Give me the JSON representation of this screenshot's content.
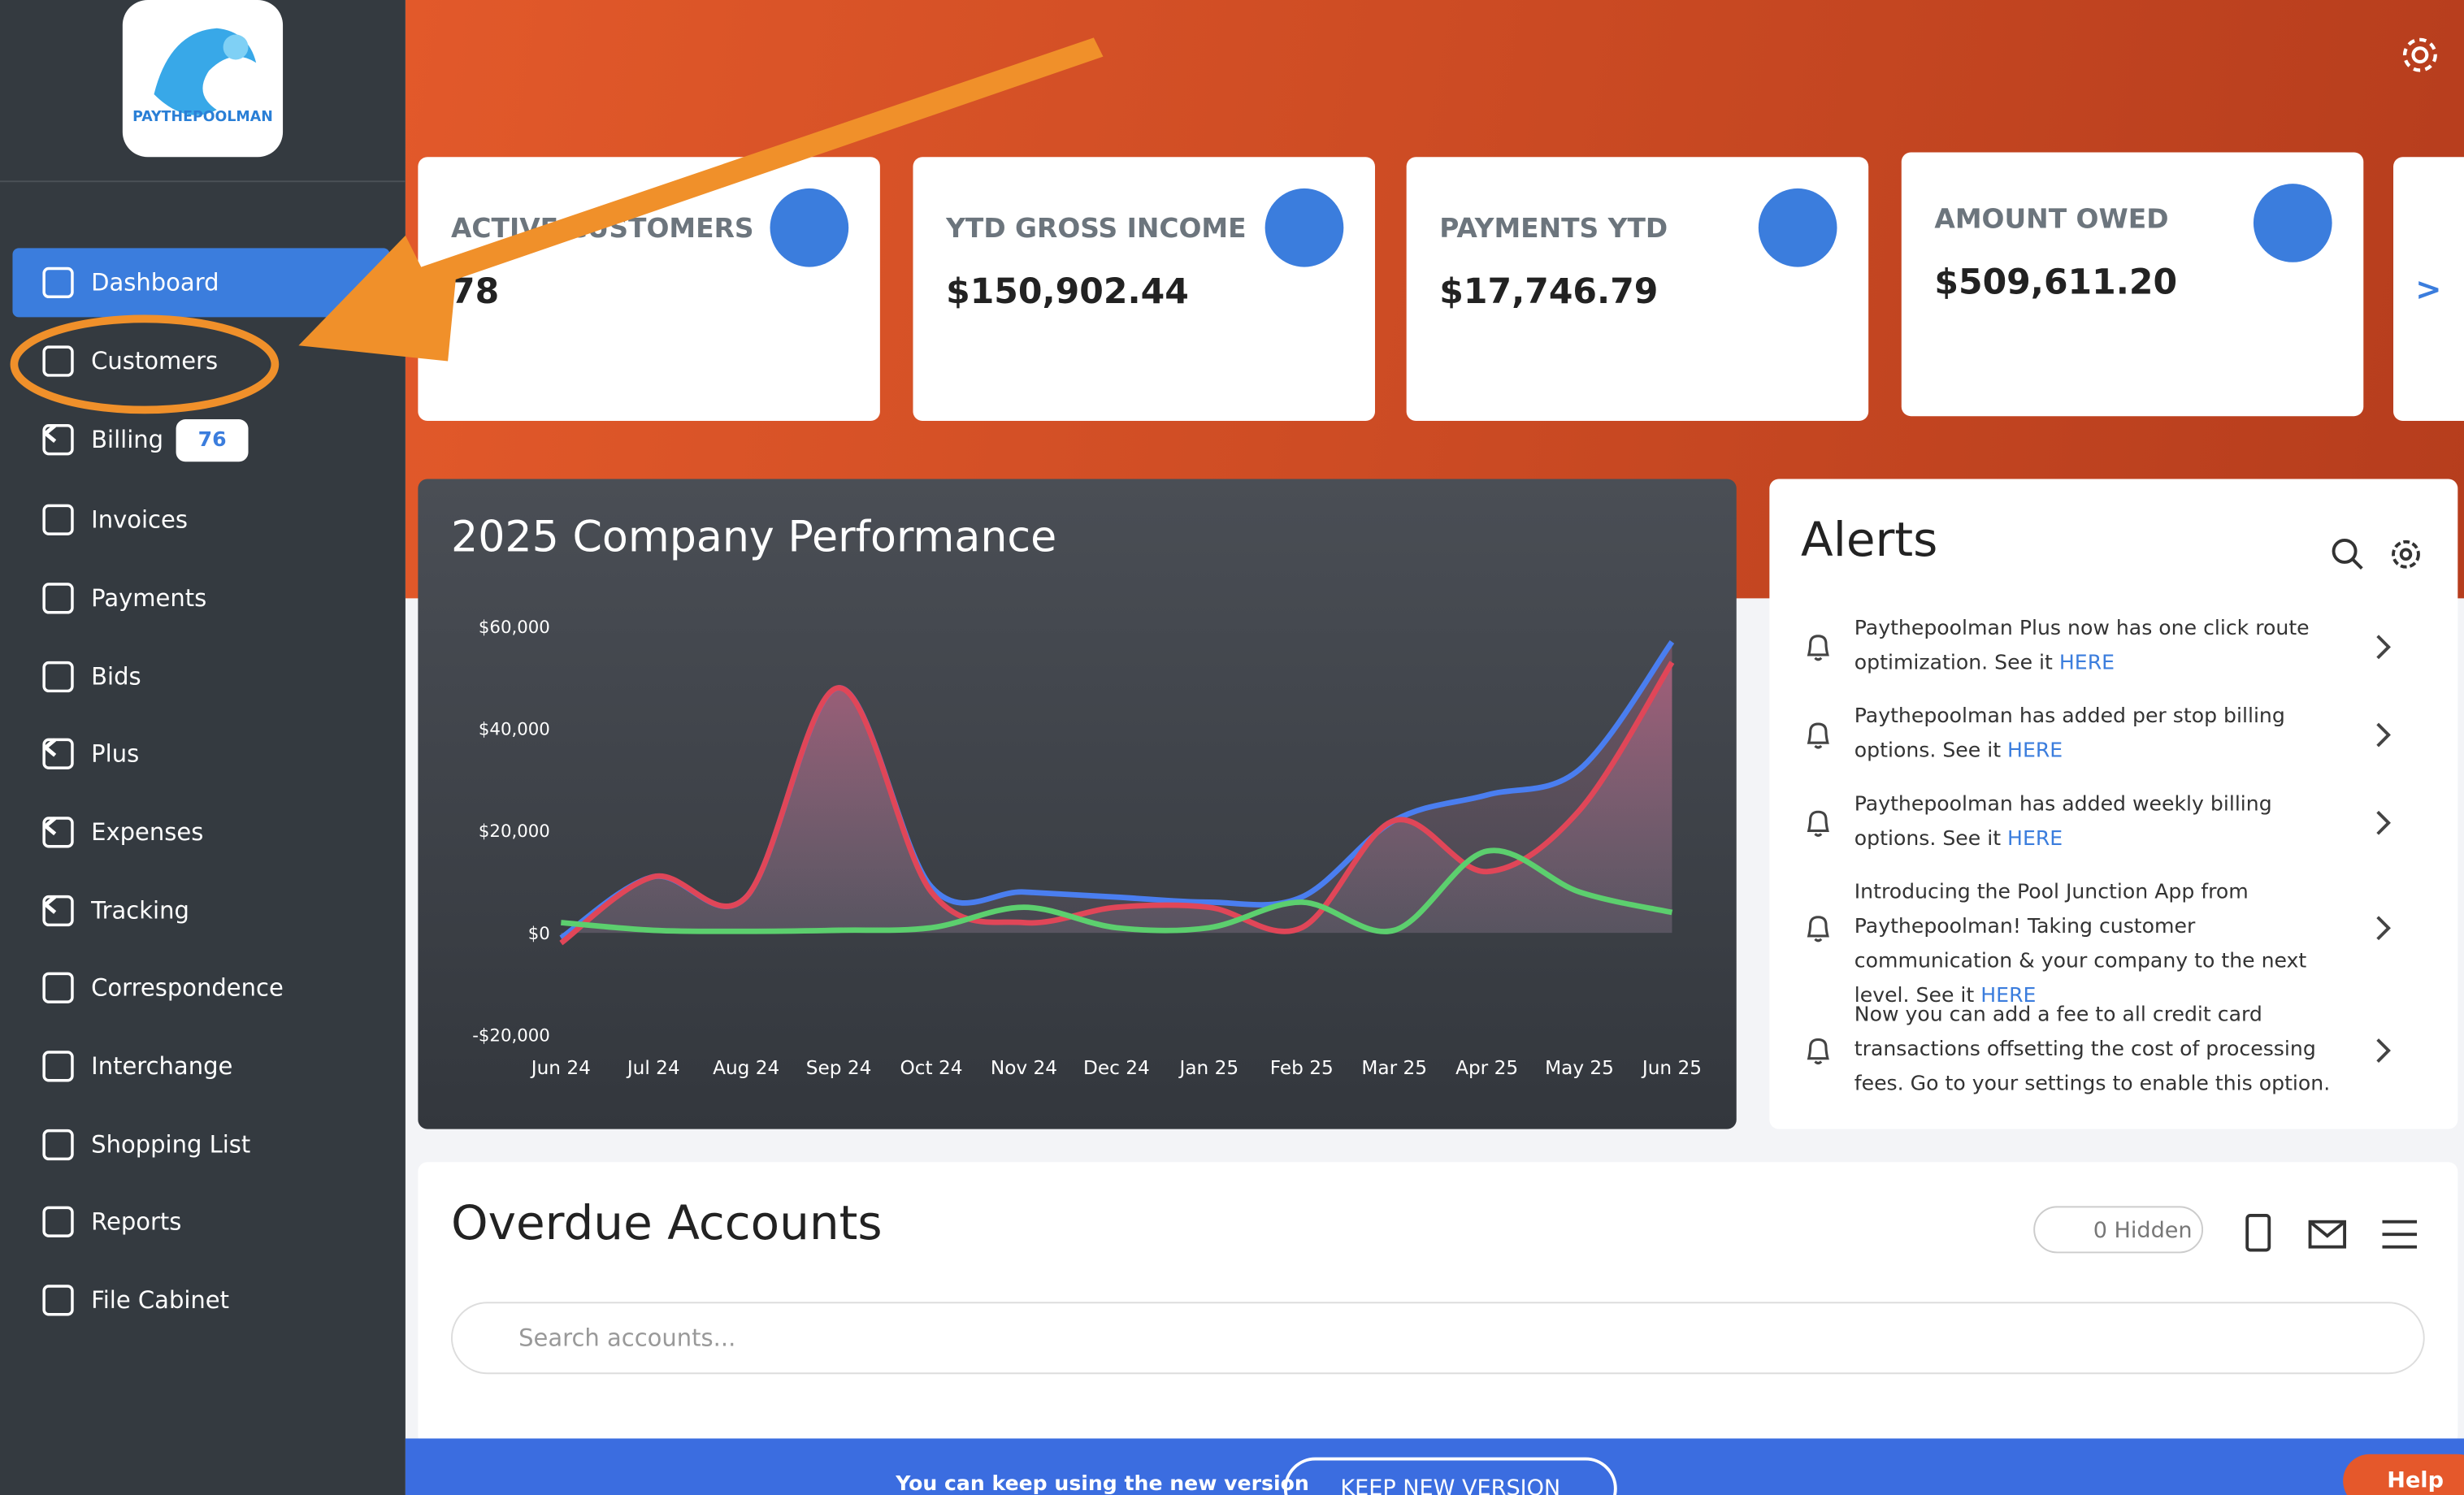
{
  "logo": "PAYTHEPOOLMAN",
  "sidebar": [
    {
      "label": "Dashboard"
    },
    {
      "label": "Customers"
    },
    {
      "label": "Billing",
      "badge": "76"
    },
    {
      "label": "Invoices"
    },
    {
      "label": "Payments"
    },
    {
      "label": "Bids"
    },
    {
      "label": "Plus"
    },
    {
      "label": "Expenses"
    },
    {
      "label": "Tracking"
    },
    {
      "label": "Correspondence"
    },
    {
      "label": "Interchange"
    },
    {
      "label": "Shopping List"
    },
    {
      "label": "Reports"
    },
    {
      "label": "File Cabinet"
    }
  ],
  "cards": [
    {
      "title": "ACTIVE CUSTOMERS",
      "value": "78"
    },
    {
      "title": "YTD GROSS INCOME",
      "value": "$150,902.44"
    },
    {
      "title": "PAYMENTS YTD",
      "value": "$17,746.79"
    },
    {
      "title": "AMOUNT OWED",
      "value": "$509,611.20"
    }
  ],
  "cards_next": ">",
  "chart": {
    "type": "area",
    "title": "2025 Company Performance",
    "categories": [
      "Jun 24",
      "Jul 24",
      "Aug 24",
      "Sep 24",
      "Oct 24",
      "Nov 24",
      "Dec 24",
      "Jan 25",
      "Feb 25",
      "Mar 25",
      "Apr 25",
      "May 25",
      "Jun 25"
    ],
    "series": [
      {
        "color": "#4a7ef0",
        "values": [
          -1000,
          11000,
          7000,
          48000,
          9000,
          8000,
          7000,
          6000,
          7000,
          22000,
          27000,
          32000,
          57000
        ]
      },
      {
        "color": "#e04658",
        "values": [
          -2000,
          11000,
          7000,
          48000,
          8000,
          2000,
          5000,
          5000,
          1000,
          22000,
          12000,
          24000,
          53000
        ]
      },
      {
        "color": "#5ccf6e",
        "values": [
          2000,
          500,
          300,
          500,
          1000,
          5000,
          1000,
          1000,
          6000,
          500,
          16000,
          8000,
          4000
        ]
      }
    ],
    "ylim": [
      -20000,
      60000
    ],
    "yticks": [
      {
        "value": -20000,
        "label": "-$20,000"
      },
      {
        "value": 0,
        "label": "$0"
      },
      {
        "value": 20000,
        "label": "$20,000"
      },
      {
        "value": 40000,
        "label": "$40,000"
      },
      {
        "value": 60000,
        "label": "$60,000"
      }
    ],
    "grid": false
  },
  "alerts": {
    "title": "Alerts",
    "items": [
      {
        "text": "Paythepoolman Plus now has one click route optimization. See it",
        "link": "HERE"
      },
      {
        "text": "Paythepoolman has added per stop billing options. See it",
        "link": "HERE"
      },
      {
        "text": "Paythepoolman has added weekly billing options. See it",
        "link": "HERE"
      },
      {
        "text": "Introducing the Pool Junction App from Paythepoolman! Taking customer communication & your company to the next level. See it",
        "link": "HERE"
      },
      {
        "text": "Now you can add a fee to all credit card transactions offsetting the cost of processing fees. Go to your settings to enable this option."
      }
    ]
  },
  "overdue": {
    "title": "Overdue Accounts",
    "hidden": "0 Hidden",
    "search_placeholder": "Search accounts..."
  },
  "banner": {
    "text": "You can keep using the new version",
    "button": "KEEP NEW VERSION"
  },
  "help": "Help"
}
